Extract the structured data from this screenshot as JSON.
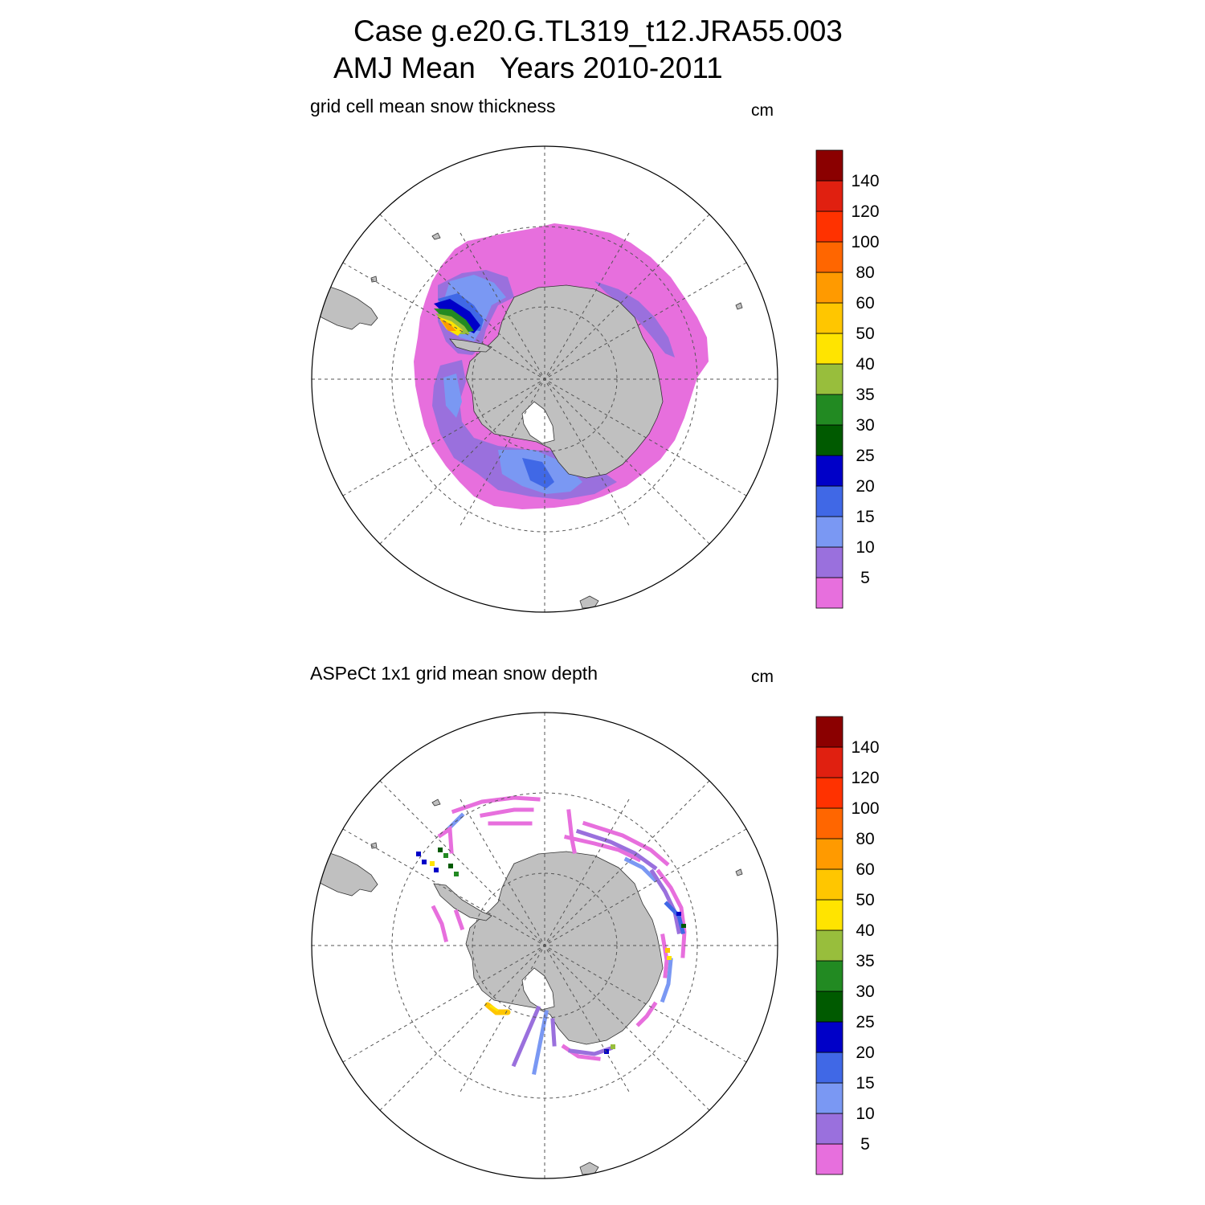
{
  "title": {
    "line1": "Case g.e20.G.TL319_t12.JRA55.003",
    "line2": "AMJ Mean   Years 2010-2011"
  },
  "colors": {
    "land": "#c0c0c0",
    "bins": [
      "#e76fdd",
      "#9a70dd",
      "#7a98f3",
      "#4068e6",
      "#0000c8",
      "#005a00",
      "#228a22",
      "#98be3c",
      "#ffe400",
      "#ffc600",
      "#ff9a00",
      "#ff6600",
      "#ff3200",
      "#e02010",
      "#8b0000"
    ]
  },
  "chart_data": [
    {
      "type": "heatmap",
      "projection": "south polar stereographic",
      "title": "grid cell mean snow thickness",
      "units": "cm",
      "colorbar_levels": [
        "5",
        "10",
        "15",
        "20",
        "25",
        "30",
        "35",
        "40",
        "50",
        "60",
        "80",
        "100",
        "120",
        "140"
      ],
      "field": "model sea-ice snow thickness, continuous coverage around Antarctica; max ~60 cm in Weddell Sea, mostly 0-15 cm"
    },
    {
      "type": "heatmap",
      "projection": "south polar stereographic",
      "title": "ASPeCt 1x1 grid mean snow depth",
      "units": "cm",
      "colorbar_levels": [
        "5",
        "10",
        "15",
        "20",
        "25",
        "30",
        "35",
        "40",
        "50",
        "60",
        "80",
        "100",
        "120",
        "140"
      ],
      "field": "observed ship-track snow depth, sparse 1x1 degree cells; mostly 0-20 cm with isolated 25-60 cm values"
    }
  ]
}
